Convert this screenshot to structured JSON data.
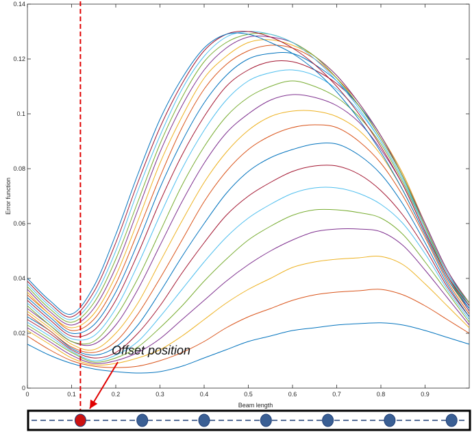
{
  "chart_data": {
    "type": "line",
    "title": "",
    "xlabel": "Beam length",
    "ylabel": "Error function",
    "xlim": [
      0,
      1
    ],
    "ylim": [
      0,
      0.14
    ],
    "xticks": [
      "0",
      "0.1",
      "0.2",
      "0.3",
      "0.4",
      "0.5",
      "0.6",
      "0.7",
      "0.8",
      "0.9"
    ],
    "yticks": [
      "0",
      "0.02",
      "0.04",
      "0.06",
      "0.08",
      "0.1",
      "0.12",
      "0.14"
    ],
    "grid": false,
    "legend": "none",
    "palette": [
      "#0072bd",
      "#d95319",
      "#edb120",
      "#7e2f8e",
      "#77ac30",
      "#4dbeee",
      "#a2142f"
    ],
    "x": [
      0,
      0.05,
      0.1,
      0.15,
      0.2,
      0.25,
      0.3,
      0.35,
      0.4,
      0.45,
      0.5,
      0.55,
      0.6,
      0.65,
      0.7,
      0.75,
      0.8,
      0.85,
      0.9,
      0.95,
      1.0
    ],
    "series": [
      {
        "values": [
          0.016,
          0.012,
          0.009,
          0.007,
          0.006,
          0.0055,
          0.006,
          0.008,
          0.011,
          0.014,
          0.017,
          0.019,
          0.021,
          0.022,
          0.023,
          0.0235,
          0.0238,
          0.023,
          0.021,
          0.0185,
          0.016
        ]
      },
      {
        "values": [
          0.019,
          0.014,
          0.01,
          0.008,
          0.0075,
          0.008,
          0.01,
          0.013,
          0.017,
          0.022,
          0.026,
          0.029,
          0.032,
          0.034,
          0.035,
          0.0355,
          0.036,
          0.034,
          0.03,
          0.025,
          0.02
        ]
      },
      {
        "values": [
          0.021,
          0.016,
          0.011,
          0.0085,
          0.009,
          0.011,
          0.014,
          0.019,
          0.025,
          0.031,
          0.036,
          0.04,
          0.044,
          0.046,
          0.047,
          0.0475,
          0.048,
          0.045,
          0.038,
          0.03,
          0.022
        ]
      },
      {
        "values": [
          0.022,
          0.017,
          0.012,
          0.009,
          0.01,
          0.013,
          0.018,
          0.025,
          0.032,
          0.039,
          0.045,
          0.05,
          0.054,
          0.057,
          0.058,
          0.058,
          0.057,
          0.052,
          0.043,
          0.033,
          0.023
        ]
      },
      {
        "values": [
          0.023,
          0.018,
          0.013,
          0.0095,
          0.011,
          0.015,
          0.022,
          0.03,
          0.039,
          0.047,
          0.054,
          0.059,
          0.063,
          0.065,
          0.065,
          0.064,
          0.062,
          0.056,
          0.046,
          0.035,
          0.024
        ]
      },
      {
        "values": [
          0.024,
          0.019,
          0.0135,
          0.01,
          0.012,
          0.017,
          0.026,
          0.036,
          0.046,
          0.055,
          0.062,
          0.067,
          0.071,
          0.073,
          0.073,
          0.071,
          0.067,
          0.06,
          0.049,
          0.036,
          0.025
        ]
      },
      {
        "values": [
          0.025,
          0.02,
          0.014,
          0.011,
          0.013,
          0.02,
          0.03,
          0.042,
          0.053,
          0.063,
          0.07,
          0.075,
          0.079,
          0.081,
          0.081,
          0.078,
          0.072,
          0.063,
          0.051,
          0.037,
          0.026
        ]
      },
      {
        "values": [
          0.026,
          0.021,
          0.0145,
          0.012,
          0.015,
          0.023,
          0.035,
          0.048,
          0.06,
          0.071,
          0.079,
          0.084,
          0.087,
          0.089,
          0.089,
          0.085,
          0.078,
          0.067,
          0.053,
          0.038,
          0.026
        ]
      },
      {
        "values": [
          0.027,
          0.021,
          0.015,
          0.013,
          0.017,
          0.027,
          0.04,
          0.054,
          0.068,
          0.079,
          0.087,
          0.092,
          0.095,
          0.096,
          0.095,
          0.09,
          0.082,
          0.07,
          0.055,
          0.039,
          0.027
        ]
      },
      {
        "values": [
          0.028,
          0.022,
          0.016,
          0.014,
          0.02,
          0.031,
          0.046,
          0.061,
          0.075,
          0.086,
          0.094,
          0.099,
          0.101,
          0.101,
          0.099,
          0.094,
          0.085,
          0.072,
          0.056,
          0.04,
          0.028
        ]
      },
      {
        "values": [
          0.029,
          0.023,
          0.017,
          0.016,
          0.023,
          0.036,
          0.052,
          0.068,
          0.082,
          0.093,
          0.1,
          0.105,
          0.107,
          0.106,
          0.103,
          0.097,
          0.087,
          0.074,
          0.057,
          0.041,
          0.028
        ]
      },
      {
        "values": [
          0.03,
          0.023,
          0.017,
          0.017,
          0.026,
          0.04,
          0.057,
          0.074,
          0.088,
          0.099,
          0.106,
          0.11,
          0.112,
          0.11,
          0.106,
          0.099,
          0.089,
          0.075,
          0.058,
          0.041,
          0.029
        ]
      },
      {
        "values": [
          0.031,
          0.024,
          0.018,
          0.019,
          0.029,
          0.045,
          0.063,
          0.08,
          0.094,
          0.105,
          0.112,
          0.115,
          0.116,
          0.114,
          0.109,
          0.101,
          0.09,
          0.076,
          0.059,
          0.042,
          0.029
        ]
      },
      {
        "values": [
          0.032,
          0.025,
          0.019,
          0.021,
          0.032,
          0.049,
          0.068,
          0.085,
          0.099,
          0.11,
          0.116,
          0.119,
          0.119,
          0.116,
          0.111,
          0.103,
          0.091,
          0.077,
          0.059,
          0.042,
          0.03
        ]
      },
      {
        "values": [
          0.033,
          0.026,
          0.02,
          0.023,
          0.035,
          0.053,
          0.073,
          0.09,
          0.104,
          0.114,
          0.12,
          0.122,
          0.122,
          0.118,
          0.112,
          0.103,
          0.092,
          0.077,
          0.06,
          0.043,
          0.03
        ]
      },
      {
        "values": [
          0.034,
          0.027,
          0.021,
          0.025,
          0.038,
          0.057,
          0.077,
          0.095,
          0.109,
          0.118,
          0.123,
          0.125,
          0.124,
          0.12,
          0.113,
          0.104,
          0.092,
          0.078,
          0.06,
          0.043,
          0.031
        ]
      },
      {
        "values": [
          0.035,
          0.027,
          0.022,
          0.027,
          0.041,
          0.061,
          0.082,
          0.099,
          0.113,
          0.121,
          0.126,
          0.127,
          0.125,
          0.121,
          0.114,
          0.104,
          0.092,
          0.078,
          0.06,
          0.043,
          0.031
        ]
      },
      {
        "values": [
          0.036,
          0.028,
          0.023,
          0.029,
          0.044,
          0.065,
          0.086,
          0.103,
          0.116,
          0.124,
          0.128,
          0.128,
          0.126,
          0.121,
          0.114,
          0.104,
          0.092,
          0.077,
          0.06,
          0.043,
          0.031
        ]
      },
      {
        "values": [
          0.037,
          0.029,
          0.024,
          0.031,
          0.047,
          0.068,
          0.089,
          0.106,
          0.119,
          0.126,
          0.129,
          0.129,
          0.126,
          0.121,
          0.113,
          0.103,
          0.091,
          0.077,
          0.059,
          0.042,
          0.031
        ]
      },
      {
        "values": [
          0.038,
          0.03,
          0.025,
          0.033,
          0.05,
          0.072,
          0.092,
          0.109,
          0.121,
          0.128,
          0.13,
          0.129,
          0.126,
          0.12,
          0.112,
          0.102,
          0.09,
          0.076,
          0.058,
          0.042,
          0.03
        ]
      },
      {
        "values": [
          0.039,
          0.031,
          0.026,
          0.035,
          0.053,
          0.075,
          0.095,
          0.111,
          0.123,
          0.129,
          0.13,
          0.128,
          0.124,
          0.118,
          0.11,
          0.1,
          0.088,
          0.074,
          0.057,
          0.041,
          0.03
        ]
      },
      {
        "values": [
          0.04,
          0.032,
          0.027,
          0.037,
          0.056,
          0.078,
          0.098,
          0.113,
          0.124,
          0.129,
          0.129,
          0.126,
          0.122,
          0.116,
          0.108,
          0.098,
          0.086,
          0.072,
          0.056,
          0.04,
          0.029
        ]
      }
    ],
    "offset_marker": {
      "x": 0.12,
      "color": "#e00000"
    },
    "annotation": {
      "text": "Offset position"
    },
    "beam": {
      "node_positions": [
        0.12,
        0.26,
        0.4,
        0.54,
        0.68,
        0.82,
        0.96
      ],
      "node_colors": [
        "#cc1111",
        "#3a5f94",
        "#3a5f94",
        "#3a5f94",
        "#3a5f94",
        "#3a5f94",
        "#3a5f94"
      ],
      "line_color": "#1f3f77"
    }
  }
}
